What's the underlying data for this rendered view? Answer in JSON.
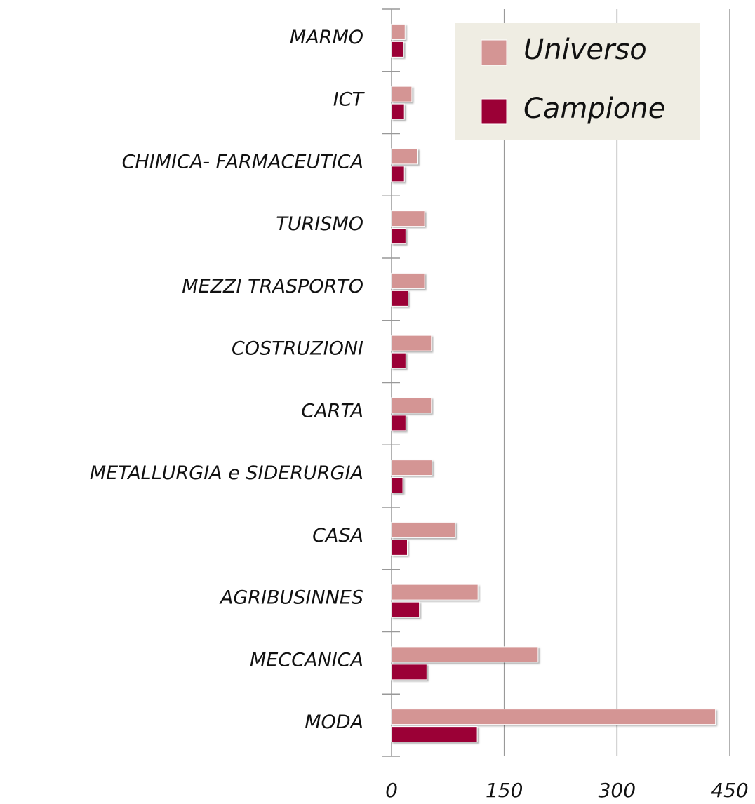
{
  "chart_data": {
    "type": "barh",
    "categories": [
      "MARMO",
      "ICT",
      "CHIMICA- FARMACEUTICA",
      "TURISMO",
      "MEZZI TRASPORTO",
      "COSTRUZIONI",
      "CARTA",
      "METALLURGIA e SIDERURGIA",
      "CASA",
      "AGRIBUSINNES",
      "MECCANICA",
      "MODA"
    ],
    "series": [
      {
        "name": "Universo",
        "color": "#d49594",
        "values": [
          18,
          27,
          35,
          44,
          44,
          53,
          53,
          54,
          85,
          115,
          195,
          431
        ]
      },
      {
        "name": "Campione",
        "color": "#9b0036",
        "values": [
          16,
          17,
          17,
          19,
          22,
          19,
          19,
          15,
          21,
          37,
          47,
          114
        ]
      }
    ],
    "xlim": [
      0,
      450
    ],
    "xticks": [
      0,
      150,
      300,
      450
    ],
    "grid": true,
    "legend": "upper right"
  }
}
